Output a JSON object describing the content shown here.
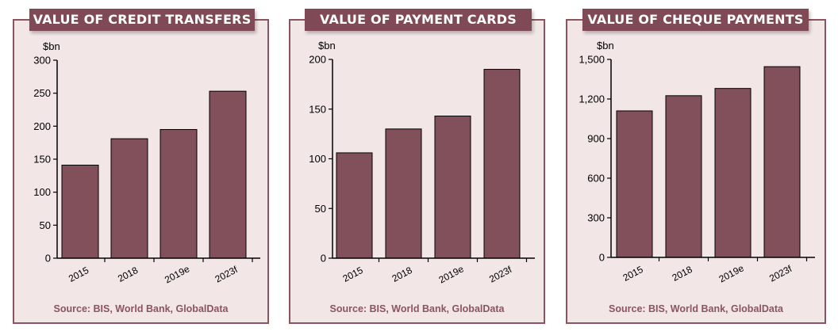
{
  "colors": {
    "bar": "#82505b",
    "panel": "#f2e6e6",
    "title_bg": "#7f4a55",
    "source_text": "#8a5560"
  },
  "chart_data": [
    {
      "type": "bar",
      "title": "VALUE OF CREDIT TRANSFERS",
      "ylabel": "$bn",
      "categories": [
        "2015",
        "2018",
        "2019e",
        "2023f"
      ],
      "values": [
        141,
        181,
        195,
        253
      ],
      "ylim": [
        0,
        300
      ],
      "yticks": [
        0,
        50,
        100,
        150,
        200,
        250,
        300
      ],
      "ytick_labels": [
        "0",
        "50",
        "100",
        "150",
        "200",
        "250",
        "300"
      ],
      "grid": false,
      "source": "Source: BIS, World Bank, GlobalData"
    },
    {
      "type": "bar",
      "title": "VALUE OF PAYMENT CARDS",
      "ylabel": "$bn",
      "categories": [
        "2015",
        "2018",
        "2019e",
        "2023f"
      ],
      "values": [
        106,
        130,
        143,
        190
      ],
      "ylim": [
        0,
        200
      ],
      "yticks": [
        0,
        50,
        100,
        150,
        200
      ],
      "ytick_labels": [
        "0",
        "50",
        "100",
        "150",
        "200"
      ],
      "grid": false,
      "source": "Source: BIS, World Bank, GlobalData"
    },
    {
      "type": "bar",
      "title": "VALUE OF CHEQUE PAYMENTS",
      "ylabel": "$bn",
      "categories": [
        "2015",
        "2018",
        "2019e",
        "2023f"
      ],
      "values": [
        1110,
        1225,
        1280,
        1445
      ],
      "ylim": [
        0,
        1500
      ],
      "yticks": [
        0,
        300,
        600,
        900,
        1200,
        1500
      ],
      "ytick_labels": [
        "0",
        "300",
        "600",
        "900",
        "1,200",
        "1,500"
      ],
      "grid": false,
      "source": "Source: BIS, World Bank, GlobalData"
    }
  ]
}
